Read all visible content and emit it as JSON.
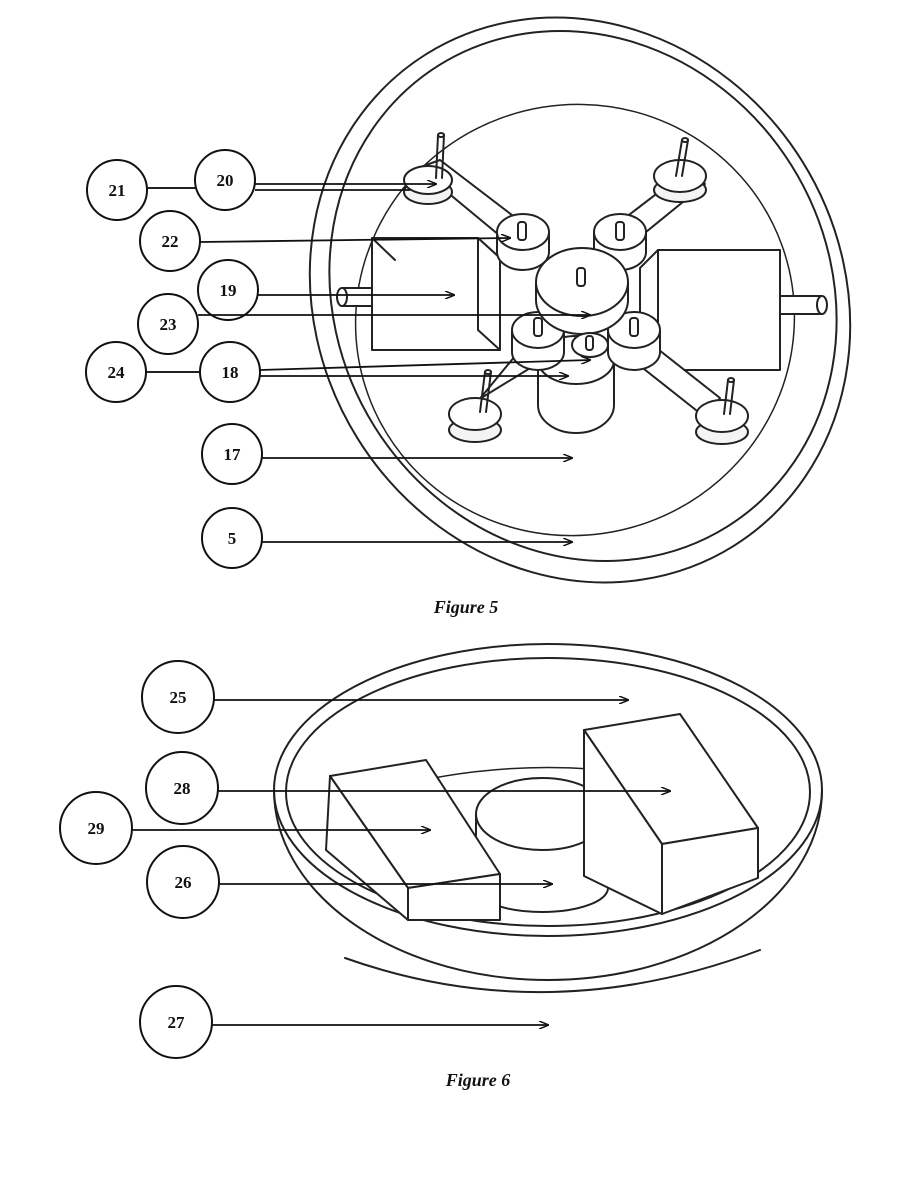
{
  "figure5": {
    "caption": "Figure 5",
    "labels": {
      "l20": "20",
      "l21": "21",
      "l22": "22",
      "l19": "19",
      "l23": "23",
      "l24": "24",
      "l18": "18",
      "l17": "17",
      "l5": "5"
    }
  },
  "figure6": {
    "caption": "Figure 6",
    "labels": {
      "l25": "25",
      "l28": "28",
      "l29": "29",
      "l26": "26",
      "l27": "27"
    }
  }
}
